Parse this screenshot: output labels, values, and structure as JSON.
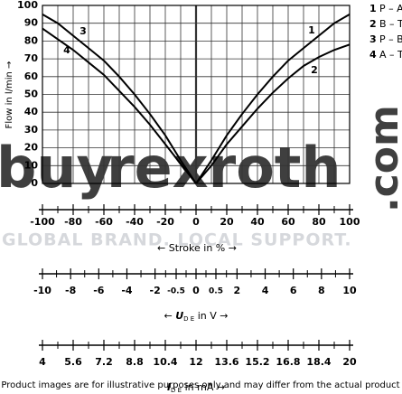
{
  "chart_data": {
    "type": "line",
    "ylabel": "Flow in l/min →",
    "ylim": [
      0,
      100
    ],
    "yticks": [
      0,
      10,
      20,
      30,
      40,
      50,
      60,
      70,
      80,
      90,
      100
    ],
    "xlim": [
      -100,
      100
    ],
    "xticks": [
      -100,
      -80,
      -60,
      -40,
      -20,
      0,
      20,
      40,
      60,
      80,
      100
    ],
    "xlabel": {
      "before": "← Stroke in % →"
    },
    "grid": true,
    "legend": "right",
    "color": "#000000",
    "series": [
      {
        "number": "1",
        "name": "P – A",
        "color": "#000000",
        "x": [
          0,
          10,
          20,
          30,
          40,
          50,
          60,
          70,
          80,
          90,
          100
        ],
        "values": [
          0,
          13,
          27,
          39,
          50,
          60,
          69,
          76,
          83,
          90,
          95
        ]
      },
      {
        "number": "2",
        "name": "B – T",
        "color": "#000000",
        "x": [
          0,
          10,
          20,
          30,
          40,
          50,
          60,
          70,
          80,
          90,
          100
        ],
        "values": [
          0,
          10,
          22,
          32,
          42,
          51,
          59,
          66,
          71,
          75,
          78
        ]
      },
      {
        "number": "3",
        "name": "P – B",
        "color": "#000000",
        "x": [
          -100,
          -90,
          -80,
          -70,
          -60,
          -50,
          -40,
          -30,
          -20,
          -10,
          0
        ],
        "values": [
          95,
          90,
          83,
          76,
          69,
          60,
          50,
          39,
          27,
          13,
          0
        ]
      },
      {
        "number": "4",
        "name": "A – T",
        "color": "#000000",
        "x": [
          -100,
          -90,
          -80,
          -70,
          -60,
          -50,
          -40,
          -30,
          -20,
          -10,
          0
        ],
        "values": [
          87,
          81,
          75,
          68,
          61,
          52,
          43,
          33,
          22,
          11,
          0
        ]
      }
    ],
    "scales": [
      {
        "label": {
          "before": "← ",
          "symbol": "U",
          "sub": "D E",
          "after": " in V →"
        },
        "lim": [
          -10,
          10
        ],
        "ticks": [
          -10,
          -8,
          -6,
          -4,
          -2,
          -0.5,
          0,
          0.5,
          2,
          4,
          6,
          8,
          10
        ]
      },
      {
        "label": {
          "before": "",
          "symbol": "I",
          "sub": "D E",
          "after": " in mA →"
        },
        "lim": [
          4,
          20
        ],
        "ticks": [
          4,
          5.6,
          7.2,
          8.8,
          10.4,
          12,
          13.6,
          15.2,
          16.8,
          18.4,
          20
        ]
      }
    ]
  },
  "watermark": {
    "brand_a": "buy",
    "brand_b": "rexroth",
    "domain": ".com",
    "slogan": "GLOBAL BRAND. LOCAL SUPPORT."
  },
  "footer": "Product images are for illustrative purposes only and may differ from the actual product"
}
